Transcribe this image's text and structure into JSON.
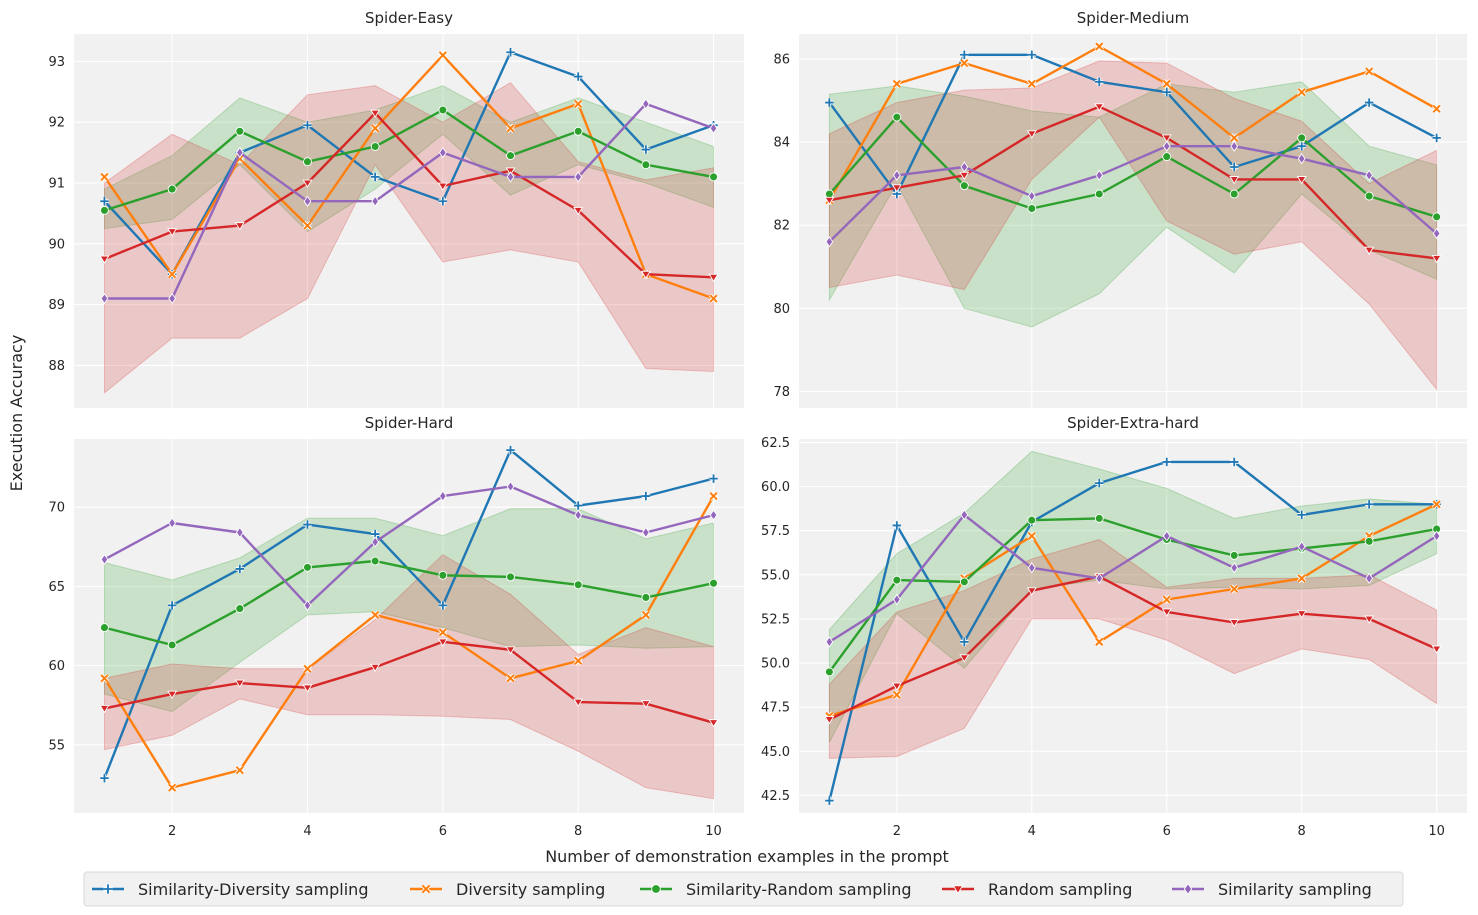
{
  "figure": {
    "ylabel": "Execution Accuracy",
    "xlabel": "Number of demonstration examples in the prompt"
  },
  "legend": [
    {
      "name": "Similarity-Diversity sampling",
      "color": "#1f77b4",
      "marker": "plus"
    },
    {
      "name": "Diversity sampling",
      "color": "#ff7f0e",
      "marker": "x"
    },
    {
      "name": "Similarity-Random sampling",
      "color": "#2ca02c",
      "marker": "circle"
    },
    {
      "name": "Random sampling",
      "color": "#d62728",
      "marker": "triangle-down"
    },
    {
      "name": "Similarity sampling",
      "color": "#9467bd",
      "marker": "diamond"
    }
  ],
  "chart_data": [
    {
      "type": "line",
      "title": "Spider-Easy",
      "x": [
        1,
        2,
        3,
        4,
        5,
        6,
        7,
        8,
        9,
        10
      ],
      "xticks": [
        2,
        4,
        6,
        8,
        10
      ],
      "xlim": [
        0.55,
        10.45
      ],
      "ylim": [
        87.3,
        93.45
      ],
      "yticks": [
        88,
        89,
        90,
        91,
        92,
        93
      ],
      "ytick_labels": [
        "88",
        "89",
        "90",
        "91",
        "92",
        "93"
      ],
      "series": [
        {
          "name": "Similarity-Diversity sampling",
          "values": [
            90.7,
            89.5,
            91.5,
            91.95,
            91.1,
            90.7,
            93.15,
            92.75,
            91.55,
            91.95
          ]
        },
        {
          "name": "Diversity sampling",
          "values": [
            91.1,
            89.5,
            91.4,
            90.3,
            91.9,
            93.1,
            91.9,
            92.3,
            89.5,
            89.1
          ]
        },
        {
          "name": "Similarity-Random sampling",
          "values": [
            90.55,
            90.9,
            91.85,
            91.35,
            91.6,
            92.2,
            91.45,
            91.85,
            91.3,
            91.1
          ]
        },
        {
          "name": "Random sampling",
          "values": [
            89.75,
            90.2,
            90.3,
            91.0,
            92.15,
            90.95,
            91.2,
            90.55,
            89.5,
            89.45
          ]
        },
        {
          "name": "Similarity sampling",
          "values": [
            89.1,
            89.1,
            91.5,
            90.7,
            90.7,
            91.5,
            91.1,
            91.1,
            92.3,
            91.9
          ]
        }
      ],
      "bands": [
        {
          "name": "Similarity-Random sampling",
          "lower": [
            90.25,
            90.4,
            91.3,
            90.2,
            90.9,
            91.8,
            90.8,
            91.3,
            91.0,
            90.6
          ],
          "upper": [
            90.9,
            91.45,
            92.4,
            92.0,
            92.2,
            92.6,
            92.0,
            92.4,
            92.0,
            91.6
          ]
        },
        {
          "name": "Random sampling",
          "lower": [
            87.55,
            88.45,
            88.45,
            89.1,
            91.3,
            89.7,
            89.9,
            89.7,
            87.95,
            87.9
          ],
          "upper": [
            91.0,
            91.8,
            91.3,
            92.45,
            92.6,
            92.0,
            92.65,
            91.35,
            91.05,
            91.25
          ]
        }
      ]
    },
    {
      "type": "line",
      "title": "Spider-Medium",
      "x": [
        1,
        2,
        3,
        4,
        5,
        6,
        7,
        8,
        9,
        10
      ],
      "xticks": [
        2,
        4,
        6,
        8,
        10
      ],
      "xlim": [
        0.55,
        10.45
      ],
      "ylim": [
        77.6,
        86.6
      ],
      "yticks": [
        78,
        80,
        82,
        84,
        86
      ],
      "ytick_labels": [
        "78",
        "80",
        "82",
        "84",
        "86"
      ],
      "series": [
        {
          "name": "Similarity-Diversity sampling",
          "values": [
            84.95,
            82.75,
            86.1,
            86.1,
            85.45,
            85.2,
            83.4,
            83.9,
            84.95,
            84.1
          ]
        },
        {
          "name": "Diversity sampling",
          "values": [
            82.6,
            85.4,
            85.9,
            85.4,
            86.3,
            85.4,
            84.1,
            85.2,
            85.7,
            84.8
          ]
        },
        {
          "name": "Similarity-Random sampling",
          "values": [
            82.75,
            84.6,
            82.95,
            82.4,
            82.75,
            83.65,
            82.75,
            84.1,
            82.7,
            82.2
          ]
        },
        {
          "name": "Random sampling",
          "values": [
            82.6,
            82.9,
            83.2,
            84.2,
            84.85,
            84.1,
            83.1,
            83.1,
            81.4,
            81.2
          ]
        },
        {
          "name": "Similarity sampling",
          "values": [
            81.6,
            83.2,
            83.4,
            82.7,
            83.2,
            83.9,
            83.9,
            83.6,
            83.2,
            81.8
          ]
        }
      ],
      "bands": [
        {
          "name": "Similarity-Random sampling",
          "lower": [
            80.2,
            83.0,
            80.0,
            79.55,
            80.35,
            81.95,
            80.85,
            82.75,
            81.4,
            80.7
          ],
          "upper": [
            85.15,
            85.35,
            85.1,
            84.75,
            84.6,
            85.4,
            85.2,
            85.45,
            83.9,
            83.45
          ]
        },
        {
          "name": "Random sampling",
          "lower": [
            80.5,
            80.8,
            80.45,
            83.1,
            84.6,
            82.1,
            81.3,
            81.6,
            80.1,
            78.05
          ],
          "upper": [
            84.2,
            84.95,
            85.25,
            85.3,
            85.95,
            85.9,
            85.05,
            84.5,
            83.0,
            83.8
          ]
        }
      ]
    },
    {
      "type": "line",
      "title": "Spider-Hard",
      "x": [
        1,
        2,
        3,
        4,
        5,
        6,
        7,
        8,
        9,
        10
      ],
      "xticks": [
        2,
        4,
        6,
        8,
        10
      ],
      "xlim": [
        0.55,
        10.45
      ],
      "ylim": [
        50.7,
        74.3
      ],
      "yticks": [
        55,
        60,
        65,
        70
      ],
      "ytick_labels": [
        "55",
        "60",
        "65",
        "70"
      ],
      "series": [
        {
          "name": "Similarity-Diversity sampling",
          "values": [
            52.9,
            63.8,
            66.1,
            68.9,
            68.3,
            63.8,
            73.6,
            70.1,
            70.7,
            71.8
          ]
        },
        {
          "name": "Diversity sampling",
          "values": [
            59.2,
            52.3,
            53.4,
            59.8,
            63.2,
            62.1,
            59.2,
            60.3,
            63.2,
            70.7
          ]
        },
        {
          "name": "Similarity-Random sampling",
          "values": [
            62.4,
            61.3,
            63.6,
            66.2,
            66.6,
            65.7,
            65.6,
            65.1,
            64.3,
            65.2
          ]
        },
        {
          "name": "Random sampling",
          "values": [
            57.3,
            58.2,
            58.9,
            58.6,
            59.9,
            61.5,
            61.0,
            57.7,
            57.6,
            56.4
          ]
        },
        {
          "name": "Similarity sampling",
          "values": [
            66.7,
            69.0,
            68.4,
            63.8,
            67.8,
            70.7,
            71.3,
            69.5,
            68.4,
            69.5
          ]
        }
      ],
      "bands": [
        {
          "name": "Similarity-Random sampling",
          "lower": [
            58.2,
            57.1,
            60.2,
            63.2,
            63.4,
            62.4,
            61.2,
            61.3,
            61.1,
            61.2
          ],
          "upper": [
            66.5,
            65.4,
            66.8,
            69.3,
            69.3,
            68.2,
            69.9,
            69.9,
            68.0,
            69.0
          ]
        },
        {
          "name": "Random sampling",
          "lower": [
            54.7,
            55.6,
            57.9,
            56.9,
            56.9,
            56.8,
            56.6,
            54.6,
            52.3,
            51.6
          ],
          "upper": [
            59.2,
            60.1,
            59.8,
            59.8,
            62.9,
            67.0,
            64.5,
            60.7,
            62.4,
            61.2
          ]
        }
      ]
    },
    {
      "type": "line",
      "title": "Spider-Extra-hard",
      "x": [
        1,
        2,
        3,
        4,
        5,
        6,
        7,
        8,
        9,
        10
      ],
      "xticks": [
        2,
        4,
        6,
        8,
        10
      ],
      "xlim": [
        0.55,
        10.45
      ],
      "ylim": [
        41.5,
        62.7
      ],
      "yticks": [
        42.5,
        45.0,
        47.5,
        50.0,
        52.5,
        55.0,
        57.5,
        60.0,
        62.5
      ],
      "ytick_labels": [
        "42.5",
        "45.0",
        "47.5",
        "50.0",
        "52.5",
        "55.0",
        "57.5",
        "60.0",
        "62.5"
      ],
      "series": [
        {
          "name": "Similarity-Diversity sampling",
          "values": [
            42.2,
            57.8,
            51.2,
            58.0,
            60.2,
            61.4,
            61.4,
            58.4,
            59.0,
            59.0
          ]
        },
        {
          "name": "Diversity sampling",
          "values": [
            47.0,
            48.2,
            54.8,
            57.2,
            51.2,
            53.6,
            54.2,
            54.8,
            57.2,
            59.0
          ]
        },
        {
          "name": "Similarity-Random sampling",
          "values": [
            49.5,
            54.7,
            54.6,
            58.1,
            58.2,
            57.0,
            56.1,
            56.5,
            56.9,
            57.6
          ]
        },
        {
          "name": "Random sampling",
          "values": [
            46.8,
            48.7,
            50.3,
            54.1,
            54.9,
            52.9,
            52.3,
            52.8,
            52.5,
            50.8
          ]
        },
        {
          "name": "Similarity sampling",
          "values": [
            51.2,
            53.6,
            58.4,
            55.4,
            54.8,
            57.2,
            55.4,
            56.6,
            54.8,
            57.2
          ]
        }
      ],
      "bands": [
        {
          "name": "Similarity-Random sampling",
          "lower": [
            45.5,
            52.8,
            49.7,
            54.2,
            54.7,
            54.2,
            54.3,
            54.2,
            54.4,
            56.2
          ],
          "upper": [
            51.9,
            56.2,
            58.5,
            62.0,
            61.0,
            59.9,
            58.2,
            58.9,
            59.3,
            59.0
          ]
        },
        {
          "name": "Random sampling",
          "lower": [
            44.6,
            44.7,
            46.3,
            52.5,
            52.5,
            51.3,
            49.4,
            50.8,
            50.2,
            47.7
          ],
          "upper": [
            48.8,
            52.9,
            54.1,
            55.9,
            57.0,
            54.3,
            54.8,
            54.8,
            55.0,
            53.0
          ]
        }
      ]
    }
  ]
}
